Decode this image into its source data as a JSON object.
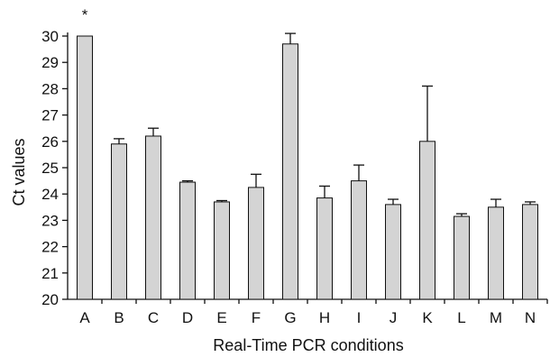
{
  "chart_data": {
    "type": "bar",
    "title": "",
    "xlabel": "Real-Time PCR conditions",
    "ylabel": "Ct values",
    "ylim": [
      20,
      30
    ],
    "yticks": [
      20,
      21,
      22,
      23,
      24,
      25,
      26,
      27,
      28,
      29,
      30
    ],
    "categories": [
      "A",
      "B",
      "C",
      "D",
      "E",
      "F",
      "G",
      "H",
      "I",
      "J",
      "K",
      "L",
      "M",
      "N"
    ],
    "values": [
      30,
      25.9,
      26.2,
      24.45,
      23.7,
      24.25,
      29.7,
      23.85,
      24.5,
      23.6,
      26.0,
      23.15,
      23.5,
      23.6
    ],
    "error": [
      0,
      0.2,
      0.3,
      0.05,
      0.05,
      0.5,
      0.45,
      0.45,
      0.6,
      0.2,
      2.1,
      0.1,
      0.3,
      0.1
    ],
    "annotations": [
      {
        "category": "A",
        "text": "*"
      }
    ],
    "grid": false,
    "colors": {
      "bar_fill": "#d4d4d4",
      "stroke": "#111111"
    }
  }
}
